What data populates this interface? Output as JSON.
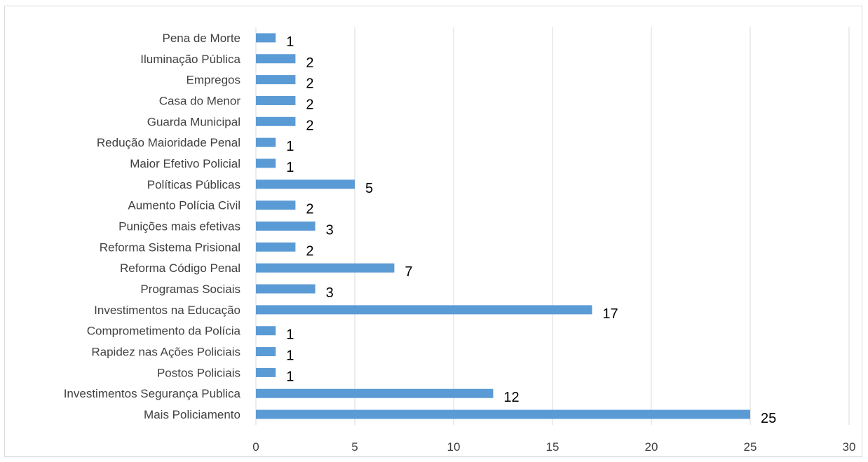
{
  "chart_data": {
    "type": "bar",
    "orientation": "horizontal",
    "title": "",
    "xlabel": "",
    "ylabel": "",
    "xlim": [
      0,
      30
    ],
    "xticks": [
      0,
      5,
      10,
      15,
      20,
      25,
      30
    ],
    "grid": "vertical",
    "legend": "none",
    "bar_color": "#5b9bd5",
    "categories": [
      "Pena de Morte",
      "Iluminação Pública",
      "Empregos",
      "Casa do Menor",
      "Guarda Municipal",
      "Redução Maioridade Penal",
      "Maior Efetivo Policial",
      "Políticas Públicas",
      "Aumento Polícia Civil",
      "Punições mais efetivas",
      "Reforma Sistema Prisional",
      "Reforma Código Penal",
      "Programas Sociais",
      "Investimentos na Educação",
      "Comprometimento da Polícia",
      "Rapidez nas Ações Policiais",
      "Postos Policiais",
      "Investimentos Segurança Publica",
      "Mais Policiamento"
    ],
    "values": [
      1,
      2,
      2,
      2,
      2,
      1,
      1,
      5,
      2,
      3,
      2,
      7,
      3,
      17,
      1,
      1,
      1,
      12,
      25
    ]
  }
}
